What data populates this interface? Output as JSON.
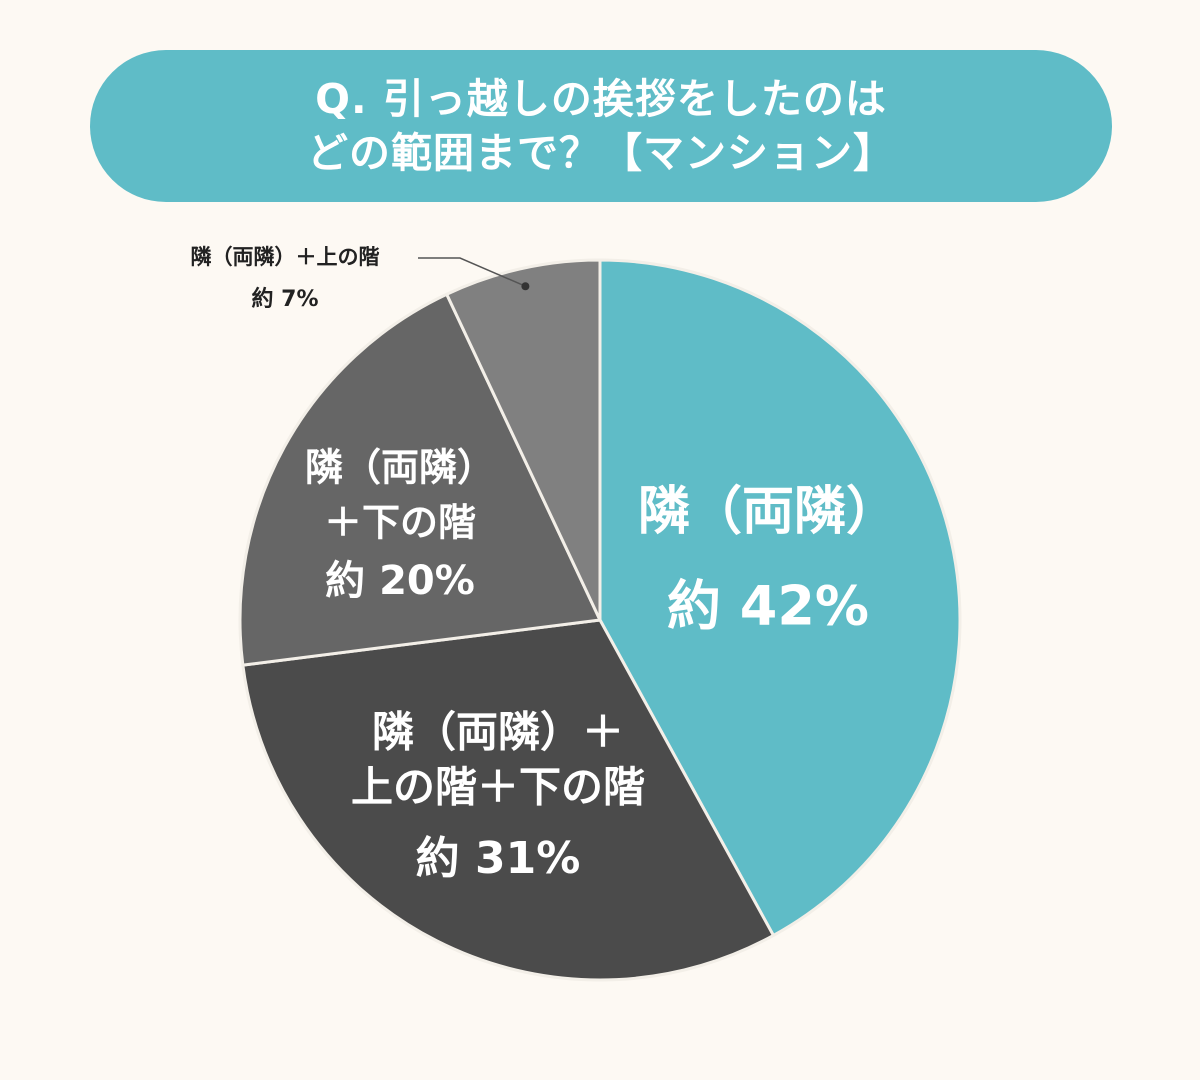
{
  "title": {
    "line1": "Q. 引っ越しの挨拶をしたのは",
    "line2": "どの範囲まで？【マンション】"
  },
  "colors": {
    "background": "#fdf9f3",
    "accent": "#5fbcc7",
    "dark": "#4b4b4b",
    "mid": "#666666",
    "light": "#808080",
    "separator": "#f3efe8"
  },
  "chart_data": {
    "type": "pie",
    "title": "Q. 引っ越しの挨拶をしたのは どの範囲まで？【マンション】",
    "slices": [
      {
        "label_lines": [
          "隣（両隣）"
        ],
        "value_text": "約 42%",
        "value": 42,
        "color": "#5fbcc7"
      },
      {
        "label_lines": [
          "隣（両隣）＋",
          "上の階＋下の階"
        ],
        "value_text": "約 31%",
        "value": 31,
        "color": "#4b4b4b"
      },
      {
        "label_lines": [
          "隣（両隣）",
          "＋下の階"
        ],
        "value_text": "約 20%",
        "value": 20,
        "color": "#666666"
      },
      {
        "label_lines": [
          "隣（両隣）＋上の階"
        ],
        "value_text": "約 7%",
        "value": 7,
        "color": "#808080"
      }
    ]
  }
}
